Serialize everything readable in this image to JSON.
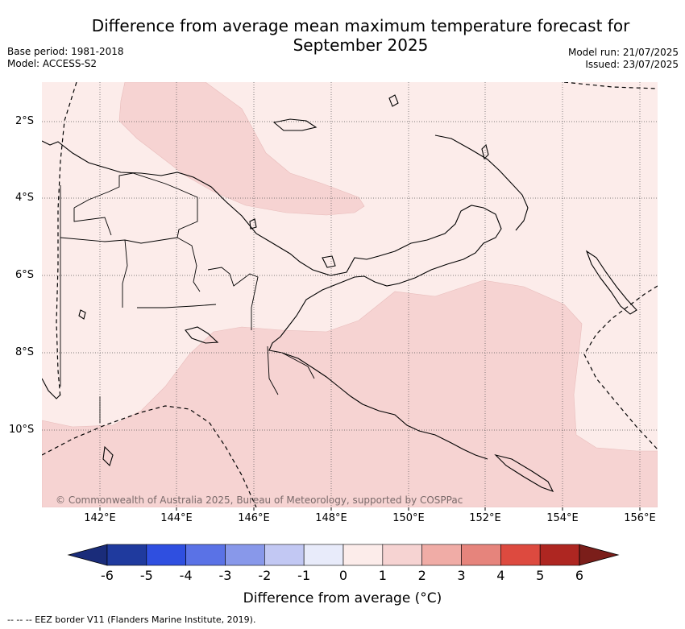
{
  "title_line1": "Difference from average mean maximum temperature forecast for",
  "title_line2": "September 2025",
  "base_period": "Base period: 1981-2018",
  "model": "Model: ACCESS-S2",
  "model_run": "Model run: 21/07/2025",
  "issued": "Issued: 23/07/2025",
  "lat_labels": [
    "2°S",
    "4°S",
    "6°S",
    "8°S",
    "10°S"
  ],
  "lon_labels": [
    "142°E",
    "144°E",
    "146°E",
    "148°E",
    "150°E",
    "152°E",
    "154°E",
    "156°E"
  ],
  "copyright": "© Commonwealth of Australia 2025, Bureau of Meteorology, supported by COSPPac",
  "colorbar": {
    "ticks": [
      "-6",
      "-5",
      "-4",
      "-3",
      "-2",
      "-1",
      "0",
      "1",
      "2",
      "3",
      "4",
      "5",
      "6"
    ],
    "colors": [
      "#1f3a9e",
      "#2f4fe0",
      "#5a72e6",
      "#8898ea",
      "#c2c8f3",
      "#e8ebfa",
      "#fcecea",
      "#f6d3d2",
      "#f0aca6",
      "#e6847c",
      "#dd4a3f",
      "#ae2621"
    ],
    "under_color": "#1a2c7a",
    "over_color": "#7b1e1a",
    "label": "Difference from average (°C)"
  },
  "legend_note": "-- -- -- EEZ border V11 (Flanders Marine Institute, 2019).",
  "map_colors": {
    "anomaly_0_1": "#fcecea",
    "anomaly_1_2": "#f6d3d2",
    "grid": "#555555",
    "coast": "#000000"
  }
}
